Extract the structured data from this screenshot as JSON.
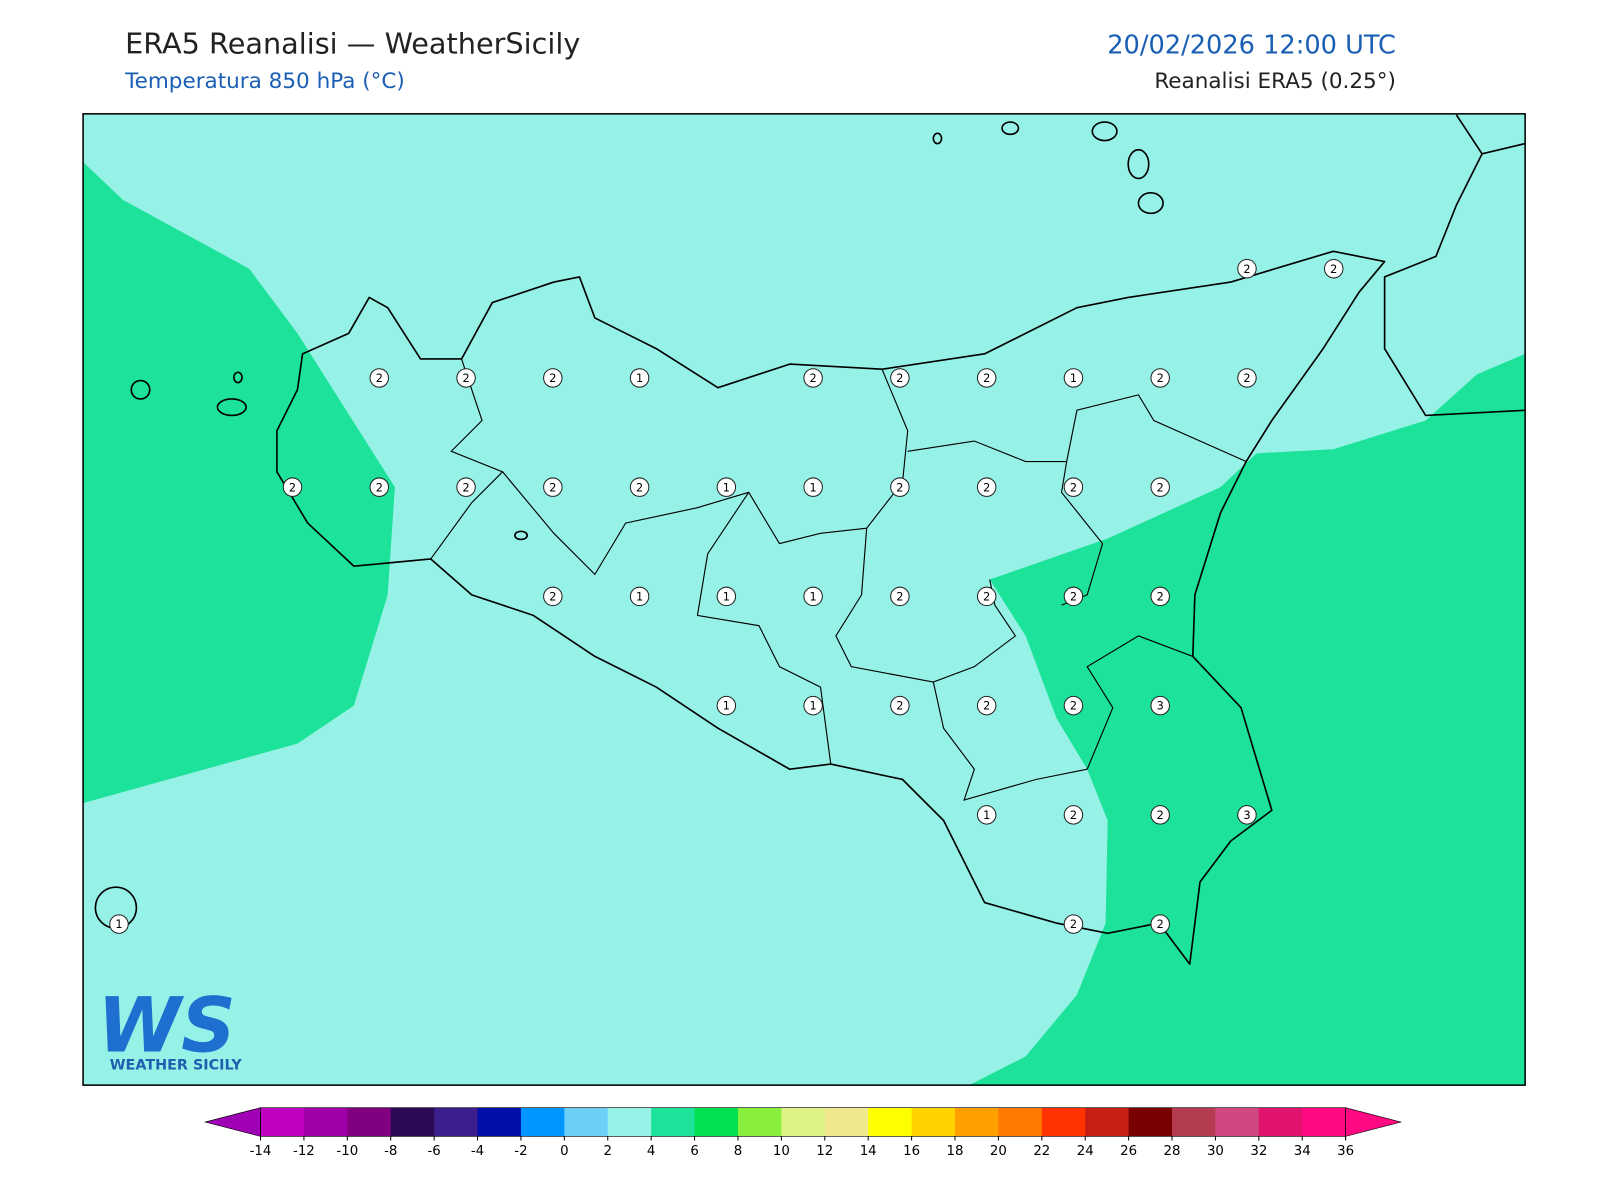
{
  "header": {
    "title": "ERA5 Reanalisi — WeatherSicily",
    "subtitle": "Temperatura 850 hPa (°C)",
    "datetime": "20/02/2026 12:00 UTC",
    "source": "Reanalisi ERA5 (0.25°)"
  },
  "stations": {
    "grid": [
      [
        null,
        null,
        null,
        null,
        null,
        null,
        null,
        null,
        null,
        null,
        null,
        null,
        null,
        2,
        2
      ],
      [
        null,
        null,
        null,
        2,
        2,
        2,
        1,
        null,
        2,
        2,
        2,
        1,
        2,
        2,
        null
      ],
      [
        null,
        null,
        2,
        2,
        2,
        2,
        2,
        1,
        1,
        2,
        2,
        2,
        2,
        null,
        null
      ],
      [
        null,
        null,
        null,
        null,
        null,
        2,
        1,
        1,
        1,
        2,
        2,
        2,
        2,
        null,
        null
      ],
      [
        null,
        null,
        null,
        null,
        null,
        null,
        null,
        1,
        1,
        2,
        2,
        2,
        3,
        null,
        null
      ],
      [
        null,
        null,
        null,
        null,
        null,
        null,
        null,
        null,
        null,
        null,
        1,
        2,
        2,
        3,
        null
      ],
      [
        1,
        null,
        null,
        null,
        null,
        null,
        null,
        null,
        null,
        null,
        null,
        2,
        2,
        null,
        null
      ]
    ]
  },
  "colorbar": {
    "ticks": [
      -14,
      -12,
      -10,
      -8,
      -6,
      -4,
      -2,
      0,
      2,
      4,
      6,
      8,
      10,
      12,
      14,
      16,
      18,
      20,
      22,
      24,
      26,
      28,
      30,
      32,
      34,
      36
    ],
    "colors": [
      "#c000c0",
      "#a000a8",
      "#800080",
      "#2d0a55",
      "#3c1e8c",
      "#0010a8",
      "#0096ff",
      "#6ccff6",
      "#96f2e6",
      "#1de29a",
      "#00e050",
      "#88f03c",
      "#dcf282",
      "#f0e88c",
      "#ffff00",
      "#ffd200",
      "#ffa000",
      "#ff7800",
      "#ff3200",
      "#c81e14",
      "#780000",
      "#b43c50",
      "#d04882",
      "#e0146e",
      "#ff0a82"
    ],
    "under": "#a000b4",
    "over": "#ff0a82"
  },
  "logo": {
    "mark": "WS",
    "text": "WEATHER SICILY"
  }
}
